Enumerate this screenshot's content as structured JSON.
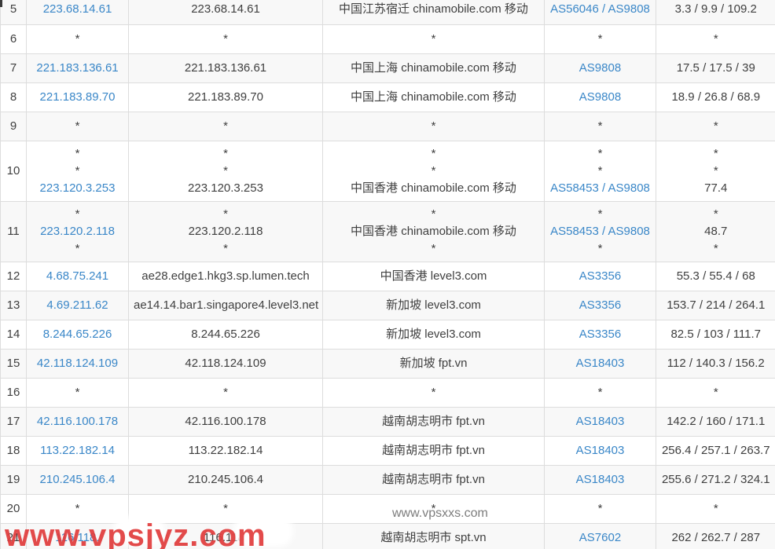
{
  "table": {
    "column_names": [
      "hop",
      "ip",
      "hostname",
      "location",
      "asn",
      "latency"
    ],
    "rows": [
      {
        "hop": "5",
        "ip": [
          "223.68.14.61"
        ],
        "host": [
          "223.68.14.61"
        ],
        "location": [
          "中国江苏宿迁 chinamobile.com 移动"
        ],
        "asn": [
          "AS56046 / AS9808"
        ],
        "latency": [
          "3.3 / 9.9 / 109.2"
        ]
      },
      {
        "hop": "6",
        "ip": [
          "*"
        ],
        "host": [
          "*"
        ],
        "location": [
          "*"
        ],
        "asn": [
          "*"
        ],
        "latency": [
          "*"
        ]
      },
      {
        "hop": "7",
        "ip": [
          "221.183.136.61"
        ],
        "host": [
          "221.183.136.61"
        ],
        "location": [
          "中国上海 chinamobile.com 移动"
        ],
        "asn": [
          "AS9808"
        ],
        "latency": [
          "17.5 / 17.5 / 39"
        ]
      },
      {
        "hop": "8",
        "ip": [
          "221.183.89.70"
        ],
        "host": [
          "221.183.89.70"
        ],
        "location": [
          "中国上海 chinamobile.com 移动"
        ],
        "asn": [
          "AS9808"
        ],
        "latency": [
          "18.9 / 26.8 / 68.9"
        ]
      },
      {
        "hop": "9",
        "ip": [
          "*"
        ],
        "host": [
          "*"
        ],
        "location": [
          "*"
        ],
        "asn": [
          "*"
        ],
        "latency": [
          "*"
        ]
      },
      {
        "hop": "10",
        "ip": [
          "*",
          "*",
          "223.120.3.253"
        ],
        "host": [
          "*",
          "*",
          "223.120.3.253"
        ],
        "location": [
          "*",
          "*",
          "中国香港 chinamobile.com 移动"
        ],
        "asn": [
          "*",
          "*",
          "AS58453 / AS9808"
        ],
        "latency": [
          "*",
          "*",
          "77.4"
        ]
      },
      {
        "hop": "11",
        "ip": [
          "*",
          "223.120.2.118",
          "*"
        ],
        "host": [
          "*",
          "223.120.2.118",
          "*"
        ],
        "location": [
          "*",
          "中国香港 chinamobile.com 移动",
          "*"
        ],
        "asn": [
          "*",
          "AS58453 / AS9808",
          "*"
        ],
        "latency": [
          "*",
          "48.7",
          "*"
        ]
      },
      {
        "hop": "12",
        "ip": [
          "4.68.75.241"
        ],
        "host": [
          "ae28.edge1.hkg3.sp.lumen.tech"
        ],
        "location": [
          "中国香港 level3.com"
        ],
        "asn": [
          "AS3356"
        ],
        "latency": [
          "55.3 / 55.4 / 68"
        ]
      },
      {
        "hop": "13",
        "ip": [
          "4.69.211.62"
        ],
        "host": [
          "ae14.14.bar1.singapore4.level3.net"
        ],
        "location": [
          "新加坡 level3.com"
        ],
        "asn": [
          "AS3356"
        ],
        "latency": [
          "153.7 / 214 / 264.1"
        ]
      },
      {
        "hop": "14",
        "ip": [
          "8.244.65.226"
        ],
        "host": [
          "8.244.65.226"
        ],
        "location": [
          "新加坡 level3.com"
        ],
        "asn": [
          "AS3356"
        ],
        "latency": [
          "82.5 / 103 / 111.7"
        ]
      },
      {
        "hop": "15",
        "ip": [
          "42.118.124.109"
        ],
        "host": [
          "42.118.124.109"
        ],
        "location": [
          "新加坡 fpt.vn"
        ],
        "asn": [
          "AS18403"
        ],
        "latency": [
          "112 / 140.3 / 156.2"
        ]
      },
      {
        "hop": "16",
        "ip": [
          "*"
        ],
        "host": [
          "*"
        ],
        "location": [
          "*"
        ],
        "asn": [
          "*"
        ],
        "latency": [
          "*"
        ]
      },
      {
        "hop": "17",
        "ip": [
          "42.116.100.178"
        ],
        "host": [
          "42.116.100.178"
        ],
        "location": [
          "越南胡志明市 fpt.vn"
        ],
        "asn": [
          "AS18403"
        ],
        "latency": [
          "142.2 / 160 / 171.1"
        ]
      },
      {
        "hop": "18",
        "ip": [
          "113.22.182.14"
        ],
        "host": [
          "113.22.182.14"
        ],
        "location": [
          "越南胡志明市 fpt.vn"
        ],
        "asn": [
          "AS18403"
        ],
        "latency": [
          "256.4 / 257.1 / 263.7"
        ]
      },
      {
        "hop": "19",
        "ip": [
          "210.245.106.4"
        ],
        "host": [
          "210.245.106.4"
        ],
        "location": [
          "越南胡志明市 fpt.vn"
        ],
        "asn": [
          "AS18403"
        ],
        "latency": [
          "255.6 / 271.2 / 324.1"
        ]
      },
      {
        "hop": "20",
        "ip": [
          "*"
        ],
        "host": [
          "*"
        ],
        "location": [
          "*"
        ],
        "asn": [
          "*"
        ],
        "latency": [
          "*"
        ]
      },
      {
        "hop": "21",
        "ip": [
          "116.118."
        ],
        "host": [
          "116.118."
        ],
        "location": [
          "越南胡志明市 spt.vn"
        ],
        "asn": [
          "AS7602"
        ],
        "latency": [
          "262 / 262.7 / 287"
        ]
      }
    ]
  },
  "watermarks": {
    "red_text": "www.vpsjyz.com",
    "gray_text": "www.vpsxxs.com"
  },
  "colors": {
    "link_blue": "#3a87c8",
    "stripe_gray": "#f8f8f8",
    "border_gray": "#dddddd",
    "watermark_red": "#e13c3c",
    "watermark_gray": "#7d7d7d",
    "text_dark": "#3f3f3f"
  }
}
